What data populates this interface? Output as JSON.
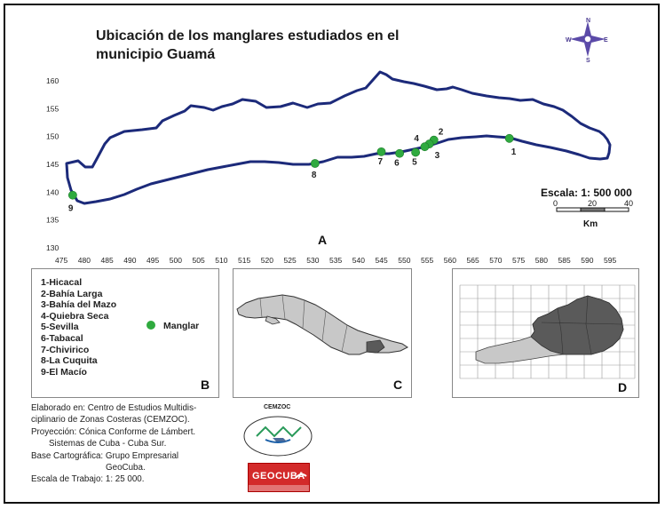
{
  "title": {
    "line1": "Ubicación de los manglares estudiados en el",
    "line2": "municipio Guamá"
  },
  "compass": {
    "n": "N",
    "e": "E",
    "s": "S",
    "w": "W"
  },
  "scale": {
    "label": "Escala: 1: 500 000",
    "t0": "0",
    "t1": "20",
    "t2": "40",
    "unit": "Km"
  },
  "axes": {
    "y": [
      "160",
      "155",
      "150",
      "145",
      "140",
      "135",
      "130"
    ],
    "x": [
      "475",
      "480",
      "485",
      "490",
      "495",
      "500",
      "505",
      "510",
      "515",
      "520",
      "525",
      "530",
      "535",
      "540",
      "545",
      "550",
      "555",
      "560",
      "565",
      "570",
      "575",
      "580",
      "585",
      "590",
      "595"
    ]
  },
  "panel_labels": {
    "a": "A",
    "b": "B",
    "c": "C",
    "d": "D"
  },
  "legend": {
    "sites": [
      "1-Hicacal",
      "2-Bahía Larga",
      "3-Bahía del Mazo",
      "4-Quiebra Seca",
      "5-Sevilla",
      "6-Tabacal",
      "7-Chivirico",
      "8-La Cuquita",
      "9-El Macío"
    ],
    "marker_label": "Manglar",
    "marker_color": "#2faa3f"
  },
  "sites_on_map": [
    {
      "n": "1",
      "x": 573,
      "y": 149.5
    },
    {
      "n": "2",
      "x": 556.5,
      "y": 149.2
    },
    {
      "n": "3",
      "x": 555.5,
      "y": 148.5
    },
    {
      "n": "4",
      "x": 554.5,
      "y": 148.0
    },
    {
      "n": "5",
      "x": 552.5,
      "y": 147.0
    },
    {
      "n": "6",
      "x": 549,
      "y": 146.8
    },
    {
      "n": "7",
      "x": 545,
      "y": 147.1
    },
    {
      "n": "8",
      "x": 530.5,
      "y": 145.0
    },
    {
      "n": "9",
      "x": 477.5,
      "y": 139.3
    }
  ],
  "credits": [
    "Elaborado en: Centro de Estudios Multidis-",
    "ciplinario de Zonas Costeras (CEMZOC).",
    "Proyección: Cónica Conforme de Lámbert.",
    "Sistemas de Cuba - Cuba Sur.",
    "Base Cartográfica: Grupo Empresarial",
    "GeoCuba.",
    "Escala de Trabajo: 1: 25 000."
  ],
  "logos": {
    "cemzoc": "CEMZOC",
    "geocuba": "GEOCUBA"
  },
  "colors": {
    "outline": "#1c2a7a",
    "marker": "#2faa3f",
    "cuba_fill": "#c8c8c8",
    "highlight": "#5a5a5a"
  }
}
